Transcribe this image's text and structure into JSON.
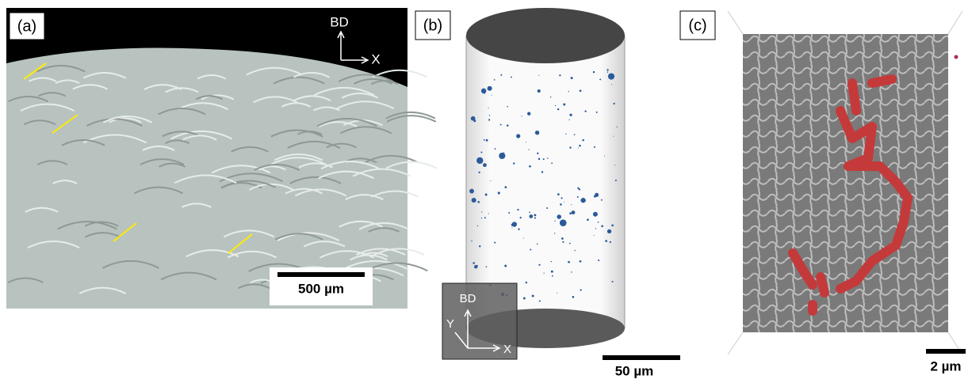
{
  "panels": [
    {
      "label": "(a)",
      "axes": {
        "vertical": "BD",
        "horizontal": "X"
      },
      "scale_bar": "500 µm"
    },
    {
      "label": "(b)",
      "axes": {
        "vertical": "BD",
        "depth": "Y",
        "horizontal": "X"
      },
      "scale_bar": "50 µm"
    },
    {
      "label": "(c)",
      "scale_bar": "2 µm"
    }
  ]
}
